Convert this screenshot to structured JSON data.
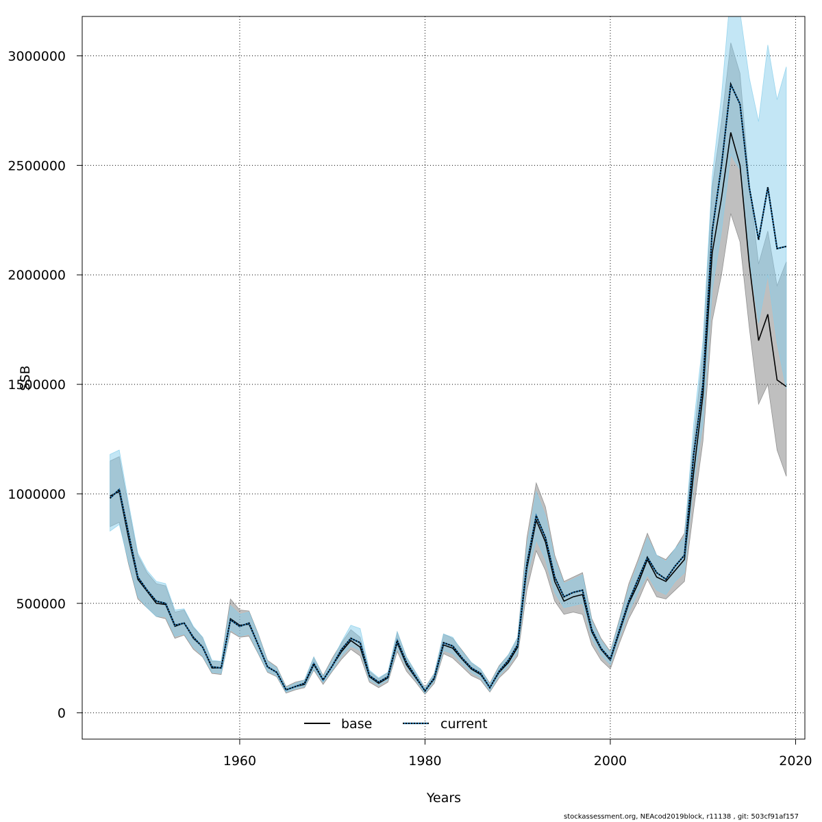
{
  "chart_data": {
    "type": "line",
    "title": "",
    "xlabel": "Years",
    "ylabel": "SSB",
    "xlim": [
      1943,
      2021
    ],
    "ylim": [
      -120000,
      3180000
    ],
    "x_ticks": [
      1960,
      1980,
      2000,
      2020
    ],
    "y_ticks": [
      0,
      500000,
      1000000,
      1500000,
      2000000,
      2500000,
      3000000
    ],
    "grid": true,
    "legend_position": "bottom-center",
    "legend": [
      {
        "label": "base",
        "style": "solid",
        "color": "#000000"
      },
      {
        "label": "current",
        "style": "dotted",
        "color": "#1f5f8b"
      }
    ],
    "bands": [
      {
        "name": "base",
        "color": "#808080",
        "opacity": 0.5
      },
      {
        "name": "current",
        "color": "#87ceeb",
        "opacity": 0.5
      }
    ],
    "x": [
      1946,
      1947,
      1948,
      1949,
      1950,
      1951,
      1952,
      1953,
      1954,
      1955,
      1956,
      1957,
      1958,
      1959,
      1960,
      1961,
      1962,
      1963,
      1964,
      1965,
      1966,
      1967,
      1968,
      1969,
      1970,
      1971,
      1972,
      1973,
      1974,
      1975,
      1976,
      1977,
      1978,
      1979,
      1980,
      1981,
      1982,
      1983,
      1984,
      1985,
      1986,
      1987,
      1988,
      1989,
      1990,
      1991,
      1992,
      1993,
      1994,
      1995,
      1996,
      1997,
      1998,
      1999,
      2000,
      2001,
      2002,
      2003,
      2004,
      2005,
      2006,
      2007,
      2008,
      2009,
      2010,
      2011,
      2012,
      2013,
      2014,
      2015,
      2016,
      2017,
      2018,
      2019
    ],
    "series": [
      {
        "name": "base",
        "values": [
          990000,
          1010000,
          800000,
          610000,
          555000,
          500000,
          495000,
          395000,
          410000,
          340000,
          300000,
          205000,
          205000,
          430000,
          400000,
          405000,
          310000,
          210000,
          185000,
          105000,
          120000,
          130000,
          220000,
          150000,
          215000,
          280000,
          330000,
          300000,
          165000,
          135000,
          160000,
          320000,
          220000,
          160000,
          100000,
          155000,
          310000,
          295000,
          245000,
          200000,
          175000,
          115000,
          185000,
          230000,
          300000,
          660000,
          880000,
          780000,
          600000,
          510000,
          530000,
          540000,
          370000,
          290000,
          240000,
          370000,
          500000,
          590000,
          700000,
          620000,
          600000,
          650000,
          700000,
          1100000,
          1450000,
          2100000,
          2350000,
          2650000,
          2500000,
          2050000,
          1700000,
          1820000,
          1520000,
          1490000
        ],
        "lower": [
          850000,
          870000,
          680000,
          520000,
          480000,
          440000,
          430000,
          340000,
          355000,
          290000,
          255000,
          180000,
          175000,
          370000,
          345000,
          350000,
          270000,
          185000,
          165000,
          90000,
          105000,
          115000,
          195000,
          130000,
          190000,
          245000,
          290000,
          260000,
          140000,
          115000,
          140000,
          280000,
          190000,
          140000,
          85000,
          135000,
          270000,
          250000,
          210000,
          170000,
          150000,
          95000,
          160000,
          200000,
          260000,
          560000,
          740000,
          650000,
          510000,
          450000,
          460000,
          450000,
          310000,
          240000,
          200000,
          320000,
          430000,
          510000,
          610000,
          530000,
          520000,
          560000,
          600000,
          930000,
          1240000,
          1790000,
          2000000,
          2280000,
          2150000,
          1760000,
          1410000,
          1500000,
          1200000,
          1080000
        ],
        "upper": [
          1150000,
          1170000,
          940000,
          720000,
          640000,
          590000,
          580000,
          460000,
          470000,
          390000,
          345000,
          235000,
          235000,
          520000,
          470000,
          465000,
          360000,
          240000,
          210000,
          120000,
          140000,
          150000,
          255000,
          170000,
          250000,
          320000,
          380000,
          345000,
          190000,
          155000,
          185000,
          370000,
          255000,
          185000,
          115000,
          180000,
          360000,
          340000,
          285000,
          230000,
          200000,
          135000,
          215000,
          265000,
          345000,
          800000,
          1050000,
          940000,
          720000,
          600000,
          620000,
          640000,
          430000,
          340000,
          280000,
          430000,
          590000,
          700000,
          820000,
          720000,
          700000,
          750000,
          820000,
          1250000,
          1650000,
          2400000,
          2700000,
          3060000,
          2920000,
          2420000,
          2050000,
          2200000,
          1950000,
          2060000
        ]
      },
      {
        "name": "current",
        "values": [
          980000,
          1020000,
          820000,
          620000,
          560000,
          510000,
          500000,
          400000,
          410000,
          345000,
          300000,
          210000,
          205000,
          425000,
          395000,
          410000,
          310000,
          210000,
          185000,
          105000,
          120000,
          135000,
          225000,
          150000,
          215000,
          290000,
          340000,
          320000,
          170000,
          140000,
          165000,
          330000,
          230000,
          165000,
          100000,
          160000,
          320000,
          305000,
          250000,
          205000,
          180000,
          115000,
          190000,
          240000,
          310000,
          680000,
          900000,
          800000,
          620000,
          530000,
          550000,
          560000,
          380000,
          295000,
          245000,
          380000,
          510000,
          610000,
          710000,
          640000,
          610000,
          670000,
          720000,
          1180000,
          1500000,
          2200000,
          2500000,
          2870000,
          2780000,
          2400000,
          2160000,
          2400000,
          2120000,
          2130000
        ],
        "lower": [
          830000,
          860000,
          690000,
          530000,
          480000,
          440000,
          440000,
          350000,
          360000,
          300000,
          260000,
          185000,
          180000,
          380000,
          350000,
          360000,
          275000,
          190000,
          170000,
          95000,
          110000,
          120000,
          200000,
          140000,
          195000,
          260000,
          305000,
          285000,
          150000,
          125000,
          150000,
          295000,
          210000,
          150000,
          90000,
          145000,
          285000,
          270000,
          225000,
          185000,
          160000,
          100000,
          170000,
          215000,
          275000,
          620000,
          790000,
          700000,
          550000,
          480000,
          490000,
          500000,
          340000,
          265000,
          220000,
          345000,
          460000,
          550000,
          630000,
          560000,
          540000,
          600000,
          640000,
          1050000,
          1320000,
          1930000,
          2200000,
          2550000,
          2480000,
          2080000,
          1780000,
          2000000,
          1690000,
          1480000
        ],
        "upper": [
          1180000,
          1200000,
          960000,
          730000,
          650000,
          600000,
          590000,
          470000,
          475000,
          395000,
          345000,
          240000,
          235000,
          490000,
          450000,
          460000,
          355000,
          235000,
          205000,
          115000,
          135000,
          150000,
          255000,
          165000,
          240000,
          325000,
          400000,
          385000,
          195000,
          160000,
          185000,
          370000,
          255000,
          185000,
          112000,
          178000,
          360000,
          345000,
          280000,
          230000,
          200000,
          130000,
          210000,
          265000,
          345000,
          760000,
          1010000,
          900000,
          700000,
          590000,
          610000,
          630000,
          420000,
          330000,
          275000,
          420000,
          570000,
          680000,
          800000,
          720000,
          690000,
          750000,
          800000,
          1320000,
          1700000,
          2450000,
          2820000,
          3300000,
          3200000,
          2900000,
          2700000,
          3050000,
          2800000,
          2950000
        ]
      }
    ]
  },
  "footer": "stockassessment.org, NEAcod2019block, r11138 , git: 503cf91af157"
}
